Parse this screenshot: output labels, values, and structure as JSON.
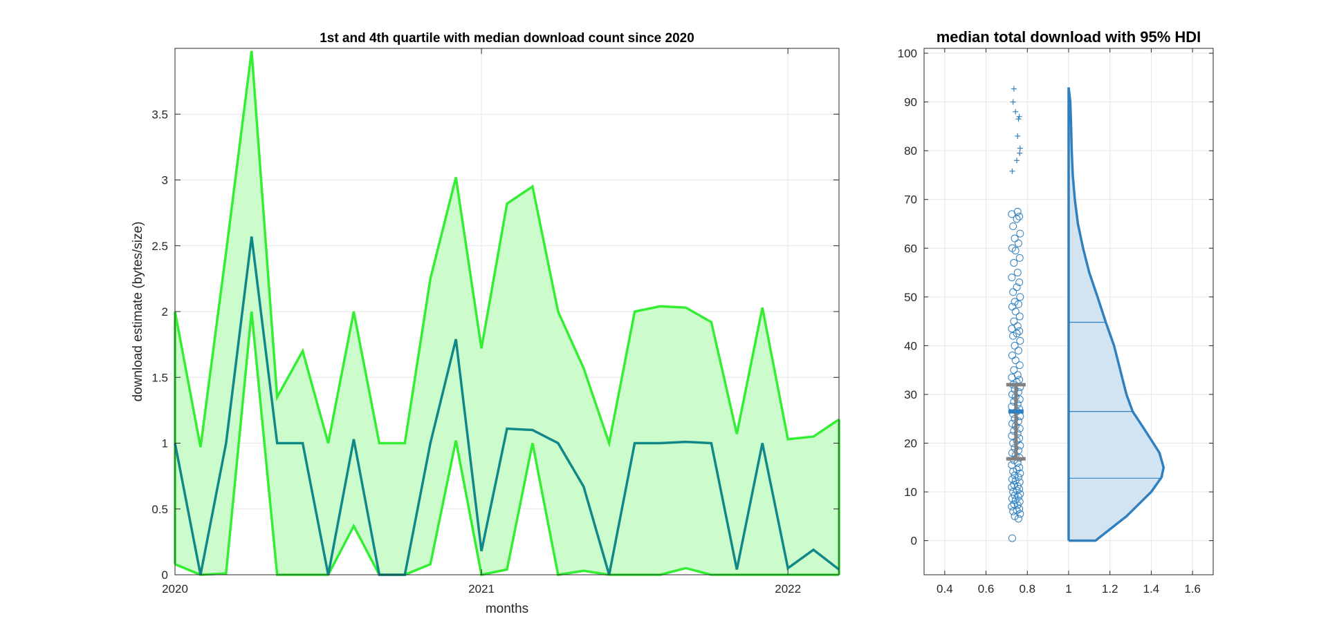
{
  "chart_data": [
    {
      "type": "area",
      "title": "1st and 4th quartile with median download count since 2020",
      "xlabel": "months",
      "ylabel": "download estimate (bytes/size)",
      "xlim": [
        "2020-01",
        "2022-03"
      ],
      "ylim": [
        0,
        4
      ],
      "x_ticks": [
        "2020",
        "2021",
        "2022"
      ],
      "y_ticks": [
        0,
        0.5,
        1,
        1.5,
        2,
        2.5,
        3,
        3.5
      ],
      "y_tick_labels": [
        "0",
        "0.5",
        "1",
        "1.5",
        "2",
        "2.5",
        "3",
        "3.5"
      ],
      "grid": true,
      "x": [
        "2020-01",
        "2020-02",
        "2020-03",
        "2020-04",
        "2020-05",
        "2020-06",
        "2020-07",
        "2020-08",
        "2020-09",
        "2020-10",
        "2020-11",
        "2020-12",
        "2021-01",
        "2021-02",
        "2021-03",
        "2021-04",
        "2021-05",
        "2021-06",
        "2021-07",
        "2021-08",
        "2021-09",
        "2021-10",
        "2021-11",
        "2021-12",
        "2022-01",
        "2022-02",
        "2022-03"
      ],
      "series": [
        {
          "role": "upper quartile",
          "color": "#33ee33",
          "values": [
            2.0,
            0.97,
            2.45,
            3.98,
            1.35,
            1.7,
            1.0,
            2.0,
            1.0,
            1.0,
            2.25,
            3.02,
            1.72,
            2.82,
            2.95,
            2.0,
            1.57,
            1.0,
            2.0,
            2.04,
            2.03,
            1.92,
            1.07,
            2.03,
            1.03,
            1.05,
            1.18
          ]
        },
        {
          "role": "median",
          "color": "#118888",
          "values": [
            1.0,
            0.0,
            1.0,
            2.57,
            1.0,
            1.0,
            0.0,
            1.03,
            0.0,
            0.0,
            1.0,
            1.79,
            0.18,
            1.11,
            1.1,
            1.0,
            0.67,
            0.0,
            1.0,
            1.0,
            1.01,
            1.0,
            0.04,
            1.0,
            0.05,
            0.19,
            0.04
          ]
        },
        {
          "role": "lower quartile",
          "color": "#33ee33",
          "values": [
            0.08,
            0.0,
            0.01,
            2.0,
            0.0,
            0.0,
            0.0,
            0.37,
            0.0,
            0.0,
            0.08,
            1.02,
            0.0,
            0.04,
            1.0,
            0.0,
            0.03,
            0.0,
            0.0,
            0.0,
            0.05,
            0.0,
            0.0,
            0.0,
            0.0,
            0.0,
            0.0
          ]
        }
      ],
      "fill_color": "#ccfbcc"
    },
    {
      "type": "scatter",
      "title": "median total download with 95% HDI",
      "xlim": [
        0.3,
        1.7
      ],
      "ylim": [
        -7,
        101
      ],
      "x_ticks": [
        0.4,
        0.6,
        0.8,
        1,
        1.2,
        1.4,
        1.6
      ],
      "x_tick_labels": [
        "0.4",
        "0.6",
        "0.8",
        "1",
        "1.2",
        "1.4",
        "1.6"
      ],
      "y_ticks": [
        0,
        10,
        20,
        30,
        40,
        50,
        60,
        70,
        80,
        90,
        100
      ],
      "y_tick_labels": [
        "0",
        "10",
        "20",
        "30",
        "40",
        "50",
        "60",
        "70",
        "80",
        "90",
        "100"
      ],
      "grid": true,
      "color": "#3080bf",
      "points_x": 0.745,
      "points": [
        0.5,
        4.5,
        5.0,
        5.5,
        6.0,
        6.2,
        6.5,
        7.0,
        7.3,
        7.5,
        8.0,
        8.3,
        8.6,
        9.0,
        9.3,
        9.6,
        10.0,
        10.3,
        10.6,
        11.0,
        11.2,
        11.5,
        12.0,
        12.3,
        12.6,
        13.0,
        13.4,
        13.8,
        14.2,
        14.6,
        15.0,
        15.5,
        16.0,
        16.5,
        17.0,
        17.5,
        18.0,
        18.5,
        19.0,
        19.5,
        20.0,
        20.5,
        21.0,
        21.5,
        22.0,
        22.5,
        23.0,
        23.5,
        24.0,
        24.5,
        25.0,
        25.5,
        26.0,
        26.5,
        27.0,
        27.5,
        28.0,
        28.5,
        29.0,
        29.5,
        30.0,
        30.5,
        31.0,
        31.5,
        32.0,
        32.5,
        33.0,
        33.5,
        34.0,
        35.0,
        36.0,
        37.0,
        38.0,
        39.0,
        40.0,
        41.0,
        42.0,
        42.5,
        43.0,
        43.5,
        44.0,
        45.0,
        46.0,
        47.0,
        48.0,
        48.5,
        49.0,
        50.0,
        51.0,
        52.0,
        53.0,
        54.0,
        55.0,
        57.0,
        58.0,
        59.5,
        60.0,
        61.0,
        62.0,
        63.0,
        64.5,
        66.0,
        66.5,
        67.0,
        67.5
      ],
      "outliers": [
        75.8,
        78.0,
        79.5,
        80.5,
        83.0,
        86.5,
        87.0,
        88.0,
        90.0,
        92.7
      ],
      "hdi": {
        "x": 0.745,
        "lower": 16.8,
        "upper": 32.0,
        "median": 26.5,
        "color": "#808080"
      },
      "density": {
        "x_base": 1.0,
        "y": [
          0,
          5,
          10,
          13,
          15,
          18,
          22,
          26.5,
          30,
          35,
          40,
          44.8,
          50,
          55,
          60,
          65,
          70,
          75,
          80,
          85,
          90,
          93
        ],
        "width": [
          0.13,
          0.28,
          0.4,
          0.45,
          0.46,
          0.44,
          0.38,
          0.31,
          0.28,
          0.25,
          0.22,
          0.18,
          0.14,
          0.1,
          0.07,
          0.045,
          0.03,
          0.02,
          0.015,
          0.012,
          0.008,
          0.0
        ],
        "quartile_lines": [
          12.8,
          26.5,
          44.8
        ],
        "fill_color": "#d2e3f1"
      }
    }
  ]
}
